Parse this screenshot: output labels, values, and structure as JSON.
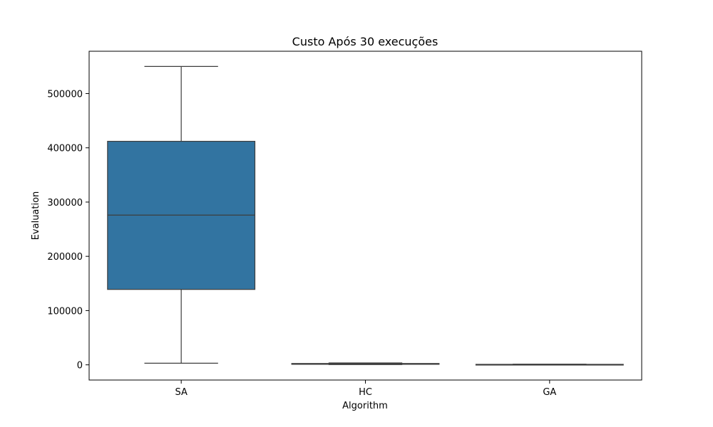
{
  "chart_data": {
    "type": "boxplot",
    "title": "Custo Após 30 execuções",
    "xlabel": "Algorithm",
    "ylabel": "Evaluation",
    "categories": [
      "SA",
      "HC",
      "GA"
    ],
    "boxes": [
      {
        "category": "SA",
        "whisker_low": 3000,
        "q1": 139000,
        "median": 276000,
        "q3": 412000,
        "whisker_high": 550000
      },
      {
        "category": "HC",
        "whisker_low": 500,
        "q1": 1000,
        "median": 1500,
        "q3": 2500,
        "whisker_high": 3500
      },
      {
        "category": "GA",
        "whisker_low": 0,
        "q1": 300,
        "median": 600,
        "q3": 900,
        "whisker_high": 1200
      }
    ],
    "yticks": [
      0,
      100000,
      200000,
      300000,
      400000,
      500000
    ],
    "ylim": [
      -28000,
      578000
    ],
    "grid": false,
    "legend": "none",
    "colors": {
      "box_fill": "#3274a1",
      "line": "#3d3d3d",
      "axis": "#000000"
    }
  }
}
